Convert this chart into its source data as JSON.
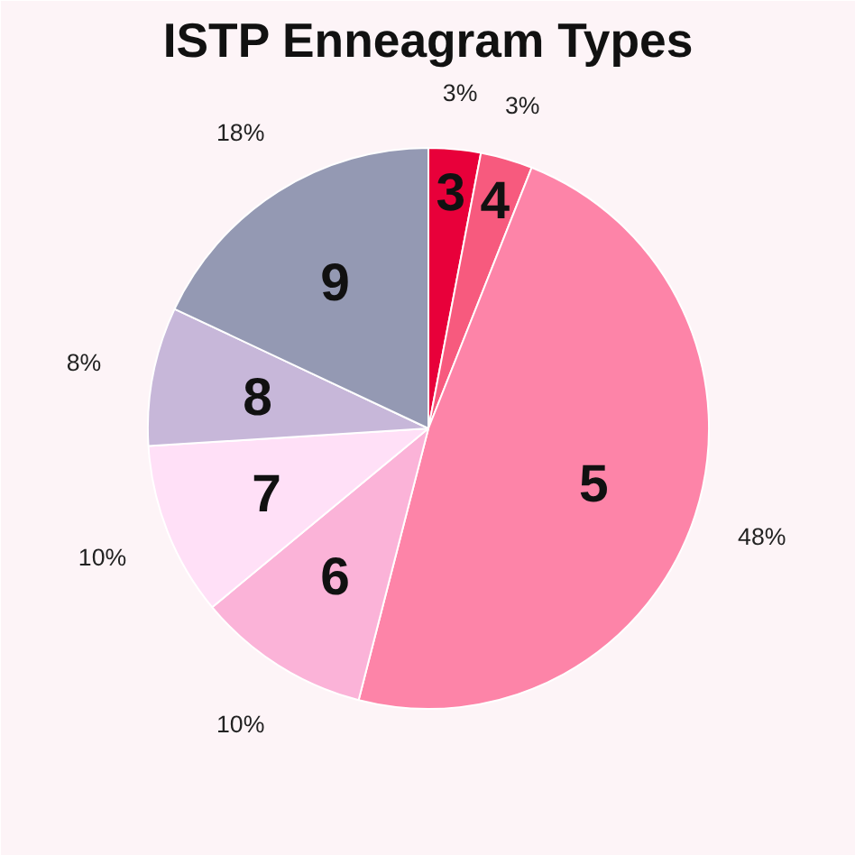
{
  "chart_data": {
    "type": "pie",
    "title": "ISTP Enneagram Types",
    "categories": [
      "3",
      "4",
      "5",
      "6",
      "7",
      "8",
      "9"
    ],
    "values": [
      3,
      3,
      48,
      10,
      10,
      8,
      18
    ],
    "value_labels": [
      "3%",
      "3%",
      "48%",
      "10%",
      "10%",
      "8%",
      "18%"
    ],
    "colors": [
      "#e8003a",
      "#f75a7e",
      "#fd84a8",
      "#fbb3d8",
      "#ffe0f7",
      "#c7b7d9",
      "#9499b3"
    ]
  }
}
